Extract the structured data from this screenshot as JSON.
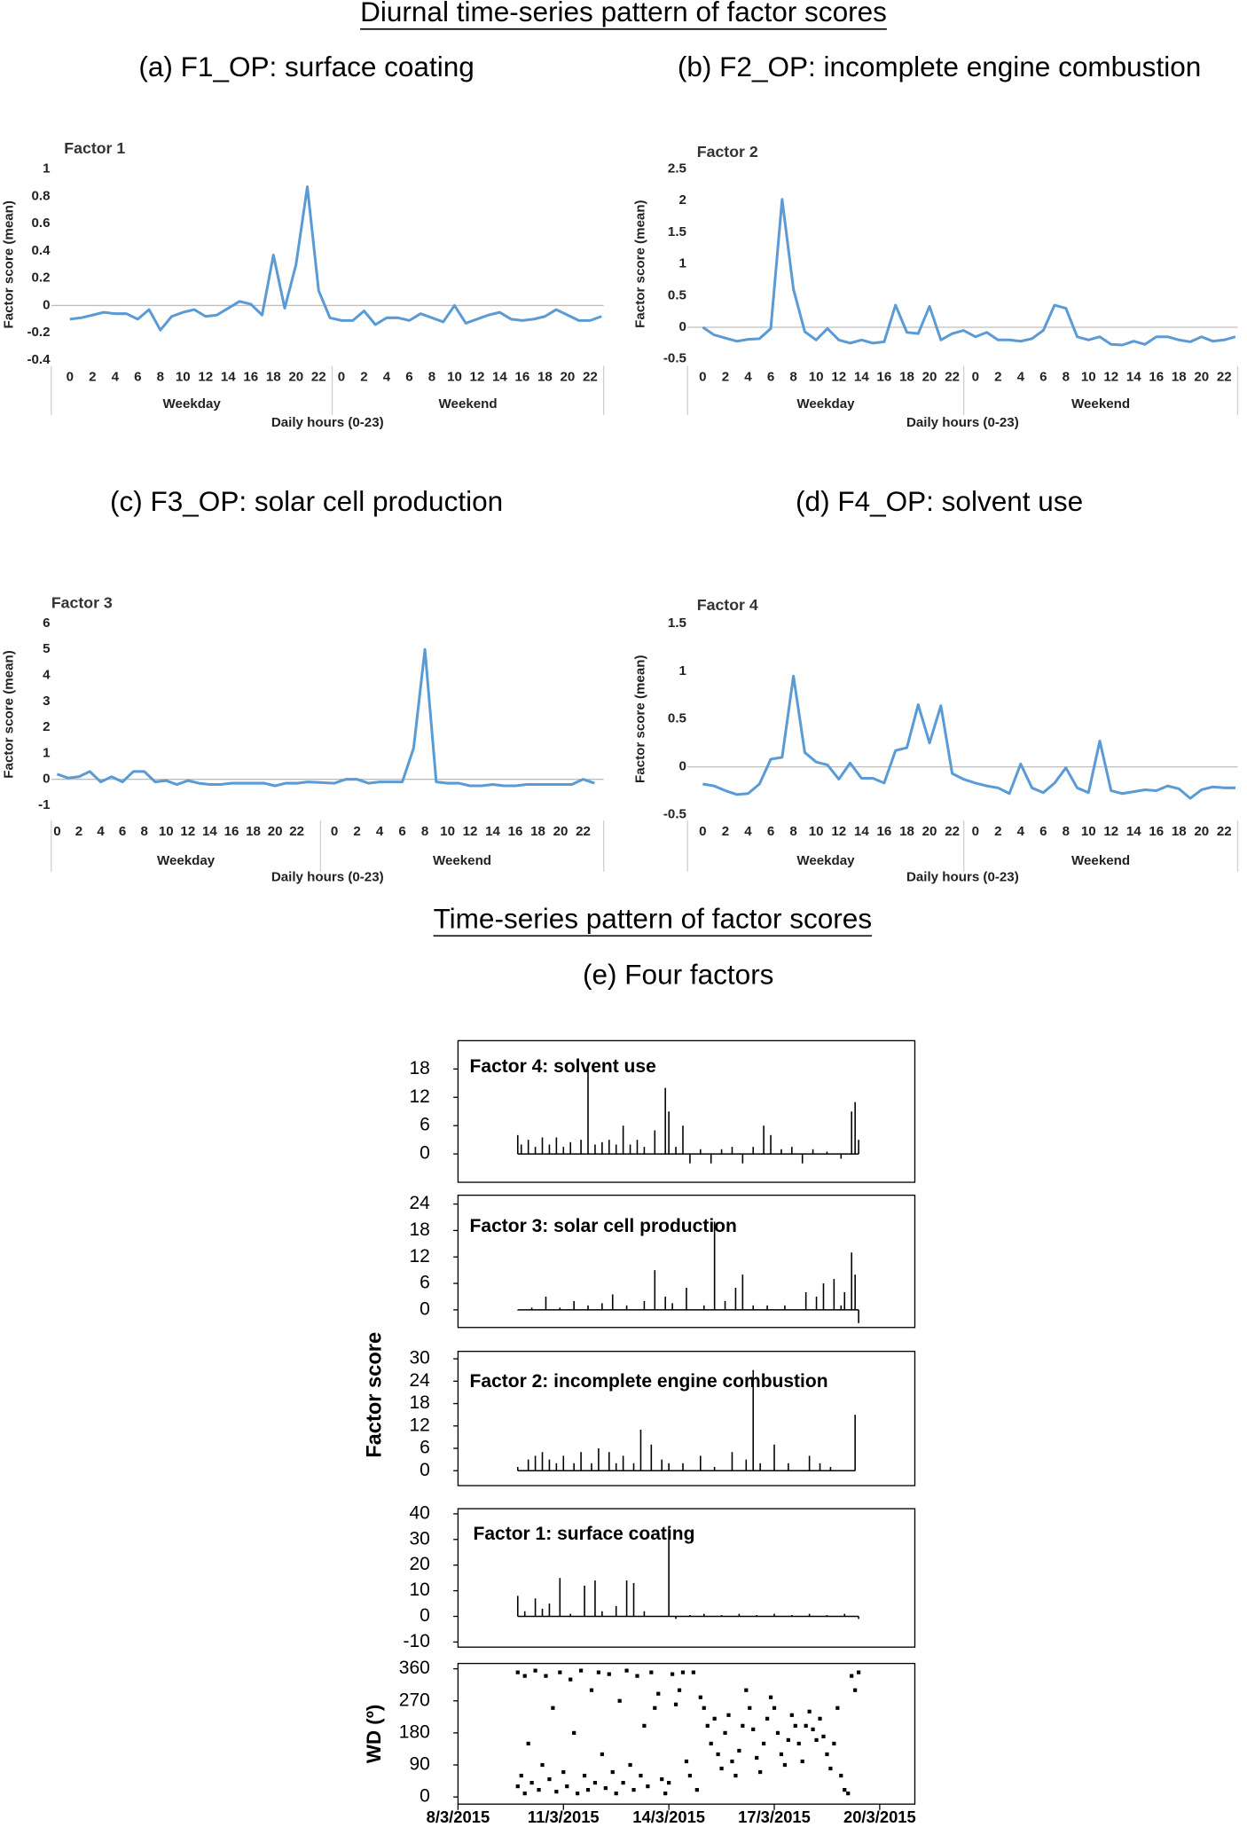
{
  "figure": {
    "title": "Diurnal time-series pattern of factor scores",
    "title_e": "Time-series pattern of factor scores",
    "subtitle_e": "(e) Four factors",
    "ylabel_e": "Factor score"
  },
  "chart_data": [
    {
      "type": "line",
      "title": "(a) F1_OP: surface coating",
      "panel_label": "Factor 1",
      "ylabel": "Factor score (mean)",
      "xlabel": "Daily hours (0-23)",
      "groups": [
        "Weekday",
        "Weekend"
      ],
      "color": "#5b9bd5",
      "categories": [
        0,
        null,
        2,
        null,
        4,
        null,
        6,
        null,
        8,
        null,
        10,
        null,
        12,
        null,
        14,
        null,
        16,
        null,
        18,
        null,
        20,
        null,
        22,
        null,
        0,
        null,
        2,
        null,
        4,
        null,
        6,
        null,
        8,
        null,
        10,
        null,
        12,
        null,
        14,
        null,
        16,
        null,
        18,
        null,
        20,
        null,
        22,
        null
      ],
      "values": [
        -0.1,
        -0.09,
        -0.07,
        -0.05,
        -0.06,
        -0.06,
        -0.1,
        -0.03,
        -0.18,
        -0.08,
        -0.05,
        -0.03,
        -0.08,
        -0.07,
        -0.02,
        0.03,
        0.01,
        -0.07,
        0.37,
        -0.02,
        0.3,
        0.87,
        0.11,
        -0.09,
        -0.11,
        -0.11,
        -0.04,
        -0.14,
        -0.09,
        -0.09,
        -0.11,
        -0.06,
        -0.09,
        -0.12,
        0.0,
        -0.13,
        -0.1,
        -0.07,
        -0.05,
        -0.1,
        -0.11,
        -0.1,
        -0.08,
        -0.03,
        -0.07,
        -0.11,
        -0.11,
        -0.08
      ],
      "ylim": [
        -0.4,
        1
      ],
      "yticks": [
        {
          "value": -0.4,
          "label": "-0.4"
        },
        {
          "value": -0.2,
          "label": "-0.2"
        },
        0,
        {
          "value": 0.2,
          "label": "0.2"
        },
        {
          "value": 0.4,
          "label": "0.4"
        },
        {
          "value": 0.6,
          "label": "0.6"
        },
        {
          "value": 0.8,
          "label": "0.8"
        },
        1
      ]
    },
    {
      "type": "line",
      "title": "(b) F2_OP: incomplete engine combustion",
      "panel_label": "Factor 2",
      "ylabel": "Factor score (mean)",
      "xlabel": "Daily hours (0-23)",
      "groups": [
        "Weekday",
        "Weekend"
      ],
      "color": "#5b9bd5",
      "categories": [
        0,
        null,
        2,
        null,
        4,
        null,
        6,
        null,
        8,
        null,
        10,
        null,
        12,
        null,
        14,
        null,
        16,
        null,
        18,
        null,
        20,
        null,
        22,
        null,
        0,
        null,
        2,
        null,
        4,
        null,
        6,
        null,
        8,
        null,
        10,
        null,
        12,
        null,
        14,
        null,
        16,
        null,
        18,
        null,
        20,
        null,
        22,
        null
      ],
      "values": [
        0.0,
        -0.12,
        -0.17,
        -0.22,
        -0.19,
        -0.18,
        -0.02,
        2.02,
        0.6,
        -0.07,
        -0.2,
        -0.02,
        -0.2,
        -0.25,
        -0.2,
        -0.25,
        -0.23,
        0.35,
        -0.08,
        -0.1,
        0.33,
        -0.2,
        -0.1,
        -0.05,
        -0.15,
        -0.08,
        -0.2,
        -0.2,
        -0.22,
        -0.18,
        -0.05,
        0.35,
        0.3,
        -0.15,
        -0.2,
        -0.15,
        -0.27,
        -0.28,
        -0.22,
        -0.27,
        -0.15,
        -0.15,
        -0.2,
        -0.23,
        -0.15,
        -0.22,
        -0.2,
        -0.15
      ],
      "ylim": [
        -0.5,
        2.5
      ],
      "yticks": [
        {
          "value": -0.5,
          "label": "-0.5"
        },
        0,
        {
          "value": 0.5,
          "label": "0.5"
        },
        1,
        {
          "value": 1.5,
          "label": "1.5"
        },
        2,
        {
          "value": 2.5,
          "label": "2.5"
        }
      ]
    },
    {
      "type": "line",
      "title": "(c) F3_OP: solar cell production",
      "panel_label": "Factor 3",
      "ylabel": "Factor score (mean)",
      "xlabel": "Daily hours (0-23)",
      "groups": [
        "Weekday",
        "Weekend"
      ],
      "color": "#5b9bd5",
      "categories": [
        0,
        null,
        2,
        null,
        4,
        null,
        6,
        null,
        8,
        null,
        10,
        null,
        12,
        null,
        14,
        null,
        16,
        null,
        18,
        null,
        20,
        null,
        22,
        null,
        0,
        null,
        2,
        null,
        4,
        null,
        6,
        null,
        8,
        null,
        10,
        null,
        12,
        null,
        14,
        null,
        16,
        null,
        18,
        null,
        20,
        null,
        22,
        null
      ],
      "values": [
        0.2,
        0.05,
        0.1,
        0.3,
        -0.1,
        0.1,
        -0.1,
        0.3,
        0.3,
        -0.1,
        -0.05,
        -0.2,
        -0.05,
        -0.15,
        -0.2,
        -0.2,
        -0.15,
        -0.15,
        -0.15,
        -0.15,
        -0.25,
        -0.15,
        -0.15,
        -0.1,
        -0.15,
        0.0,
        0.0,
        -0.15,
        -0.1,
        -0.1,
        -0.1,
        1.2,
        5.0,
        -0.1,
        -0.15,
        -0.15,
        -0.25,
        -0.25,
        -0.2,
        -0.25,
        -0.25,
        -0.2,
        -0.2,
        -0.2,
        -0.2,
        -0.2,
        0.0,
        -0.15
      ],
      "ylim": [
        -1,
        6
      ],
      "yticks": [
        -1,
        0,
        1,
        2,
        3,
        4,
        5,
        6
      ]
    },
    {
      "type": "line",
      "title": "(d) F4_OP: solvent use",
      "panel_label": "Factor 4",
      "ylabel": "Factor score (mean)",
      "xlabel": "Daily hours (0-23)",
      "groups": [
        "Weekday",
        "Weekend"
      ],
      "color": "#5b9bd5",
      "categories": [
        0,
        null,
        2,
        null,
        4,
        null,
        6,
        null,
        8,
        null,
        10,
        null,
        12,
        null,
        14,
        null,
        16,
        null,
        18,
        null,
        20,
        null,
        22,
        null,
        0,
        null,
        2,
        null,
        4,
        null,
        6,
        null,
        8,
        null,
        10,
        null,
        12,
        null,
        14,
        null,
        16,
        null,
        18,
        null,
        20,
        null,
        22,
        null
      ],
      "values": [
        -0.18,
        -0.2,
        -0.25,
        -0.29,
        -0.28,
        -0.18,
        0.08,
        0.1,
        0.95,
        0.15,
        0.05,
        0.02,
        -0.13,
        0.04,
        -0.12,
        -0.12,
        -0.17,
        0.17,
        0.2,
        0.65,
        0.25,
        0.64,
        -0.07,
        -0.13,
        -0.17,
        -0.2,
        -0.22,
        -0.28,
        0.03,
        -0.22,
        -0.27,
        -0.17,
        -0.01,
        -0.22,
        -0.27,
        0.27,
        -0.25,
        -0.28,
        -0.26,
        -0.24,
        -0.25,
        -0.2,
        -0.23,
        -0.33,
        -0.24,
        -0.21,
        -0.22,
        -0.22
      ],
      "ylim": [
        -0.5,
        1.5
      ],
      "yticks": [
        {
          "value": -0.5,
          "label": "-0.5"
        },
        0,
        {
          "value": 0.5,
          "label": "0.5"
        },
        1,
        {
          "value": 1.5,
          "label": "1.5"
        }
      ]
    },
    {
      "type": "bar",
      "title": "Factor 4: solvent  use",
      "color": "#000000",
      "x": [
        9.7,
        9.8,
        10.0,
        10.2,
        10.4,
        10.6,
        10.8,
        11.0,
        11.2,
        11.5,
        11.7,
        11.9,
        12.1,
        12.3,
        12.5,
        12.7,
        12.9,
        13.1,
        13.3,
        13.6,
        13.9,
        14.0,
        14.2,
        14.4,
        14.6,
        14.9,
        15.2,
        15.5,
        15.8,
        16.1,
        16.4,
        16.7,
        16.9,
        17.2,
        17.5,
        17.8,
        18.1,
        18.5,
        18.9,
        19.2,
        19.3,
        19.4
      ],
      "values": [
        4,
        2,
        3,
        1.5,
        3.5,
        2,
        3.5,
        1.5,
        2.5,
        3,
        18,
        2,
        2.5,
        3,
        2,
        6,
        2,
        3,
        1.5,
        5,
        14,
        9,
        1.5,
        6,
        -2,
        1,
        -2,
        1,
        1.5,
        -2,
        1.5,
        6,
        4,
        1,
        1.5,
        -2,
        1,
        0.5,
        -1,
        9,
        11,
        3
      ],
      "xlim": [
        8,
        21
      ],
      "ylim": [
        -6,
        24
      ],
      "yticks": [
        0,
        6,
        12,
        18
      ]
    },
    {
      "type": "bar",
      "title": "Factor 3: solar cell production",
      "color": "#000000",
      "x": [
        9.7,
        10.1,
        10.5,
        10.9,
        11.3,
        11.7,
        12.1,
        12.4,
        12.8,
        13.3,
        13.6,
        13.9,
        14.1,
        14.5,
        15.0,
        15.3,
        15.6,
        15.9,
        16.1,
        16.4,
        16.8,
        17.3,
        17.9,
        18.2,
        18.4,
        18.7,
        18.9,
        19.0,
        19.2,
        19.3,
        19.4
      ],
      "values": [
        0,
        0.5,
        3,
        0.5,
        2,
        1,
        1.5,
        3.5,
        1,
        2,
        9,
        3,
        1.5,
        5,
        1,
        20,
        2,
        5,
        8,
        1,
        1,
        1,
        4,
        3,
        6,
        7,
        1,
        4,
        13,
        8,
        -3
      ],
      "xlim": [
        8,
        21
      ],
      "ylim": [
        -4,
        26
      ],
      "yticks": [
        0,
        6,
        12,
        18,
        24
      ]
    },
    {
      "type": "bar",
      "title": "Factor 2: incomplete  engine  combustion",
      "color": "#000000",
      "x": [
        9.7,
        10.0,
        10.2,
        10.4,
        10.6,
        10.8,
        11.0,
        11.3,
        11.5,
        11.8,
        12.0,
        12.3,
        12.5,
        12.7,
        13.0,
        13.2,
        13.5,
        13.8,
        14.0,
        14.4,
        14.9,
        15.3,
        15.8,
        16.2,
        16.4,
        16.6,
        17.0,
        17.4,
        18.0,
        18.3,
        18.6,
        19.3
      ],
      "values": [
        1,
        3,
        4,
        5,
        3,
        2,
        4,
        2,
        5,
        2,
        6,
        5,
        2,
        4,
        2,
        11,
        7,
        3,
        2,
        2,
        4,
        1,
        5,
        3,
        27,
        2,
        7,
        2,
        4,
        2,
        1,
        15
      ],
      "xlim": [
        8,
        21
      ],
      "ylim": [
        -4,
        32
      ],
      "yticks": [
        0,
        6,
        12,
        18,
        24,
        30
      ]
    },
    {
      "type": "bar",
      "title": "Factor 1: surface coating",
      "color": "#000000",
      "x": [
        9.7,
        9.9,
        10.2,
        10.4,
        10.6,
        10.9,
        11.2,
        11.6,
        11.9,
        12.1,
        12.5,
        12.8,
        13.0,
        13.3,
        14.0,
        14.2,
        14.6,
        15.0,
        15.5,
        16.0,
        16.5,
        17.0,
        17.5,
        18.0,
        18.5,
        19.0,
        19.4
      ],
      "values": [
        8,
        2,
        7,
        3,
        5,
        15,
        1,
        12,
        14,
        2,
        4,
        14,
        13,
        2,
        35,
        -1,
        0.5,
        1,
        0.5,
        1,
        0.5,
        1,
        0.5,
        1,
        0.5,
        1,
        -1
      ],
      "xlim": [
        8,
        21
      ],
      "ylim": [
        -12,
        42
      ],
      "yticks": [
        -10,
        0,
        10,
        20,
        30,
        40
      ]
    },
    {
      "type": "scatter",
      "ylabel": "WD (º)",
      "color": "#000000",
      "x": [
        9.7,
        9.7,
        9.8,
        9.9,
        9.9,
        10.0,
        10.1,
        10.2,
        10.3,
        10.4,
        10.5,
        10.6,
        10.7,
        10.8,
        10.9,
        11.0,
        11.1,
        11.2,
        11.3,
        11.4,
        11.5,
        11.6,
        11.7,
        11.8,
        11.9,
        12.0,
        12.1,
        12.2,
        12.3,
        12.4,
        12.5,
        12.6,
        12.7,
        12.8,
        12.9,
        13.0,
        13.1,
        13.2,
        13.3,
        13.4,
        13.5,
        13.6,
        13.7,
        13.8,
        13.9,
        14.0,
        14.1,
        14.2,
        14.3,
        14.4,
        14.5,
        14.6,
        14.7,
        14.8,
        14.9,
        15.0,
        15.1,
        15.2,
        15.3,
        15.4,
        15.5,
        15.6,
        15.7,
        15.8,
        15.9,
        16.0,
        16.1,
        16.2,
        16.3,
        16.4,
        16.5,
        16.6,
        16.7,
        16.8,
        16.9,
        17.0,
        17.1,
        17.2,
        17.3,
        17.4,
        17.5,
        17.6,
        17.7,
        17.8,
        17.9,
        18.0,
        18.1,
        18.2,
        18.3,
        18.4,
        18.5,
        18.6,
        18.7,
        18.8,
        18.9,
        19.0,
        19.1,
        19.2,
        19.3,
        19.4
      ],
      "values": [
        30,
        350,
        60,
        10,
        340,
        150,
        40,
        355,
        20,
        90,
        340,
        50,
        250,
        15,
        350,
        70,
        30,
        330,
        180,
        10,
        355,
        60,
        20,
        300,
        40,
        350,
        120,
        25,
        345,
        70,
        10,
        270,
        40,
        355,
        90,
        20,
        340,
        60,
        200,
        30,
        350,
        250,
        290,
        50,
        10,
        40,
        345,
        260,
        300,
        350,
        100,
        60,
        350,
        20,
        280,
        250,
        200,
        150,
        220,
        120,
        80,
        180,
        230,
        100,
        60,
        130,
        200,
        300,
        250,
        190,
        110,
        70,
        150,
        220,
        280,
        250,
        180,
        120,
        90,
        160,
        230,
        200,
        150,
        100,
        200,
        240,
        190,
        160,
        220,
        170,
        120,
        80,
        150,
        250,
        60,
        20,
        10,
        340,
        300,
        350
      ],
      "xlim": [
        8,
        21
      ],
      "ylim": [
        -20,
        375
      ],
      "yticks": [
        0,
        90,
        180,
        270,
        360
      ],
      "xticks": [
        {
          "value": 8,
          "label": "8/3/2015"
        },
        {
          "value": 11,
          "label": "11/3/2015"
        },
        {
          "value": 14,
          "label": "14/3/2015"
        },
        {
          "value": 17,
          "label": "17/3/2015"
        },
        {
          "value": 20,
          "label": "20/3/2015"
        }
      ]
    }
  ]
}
